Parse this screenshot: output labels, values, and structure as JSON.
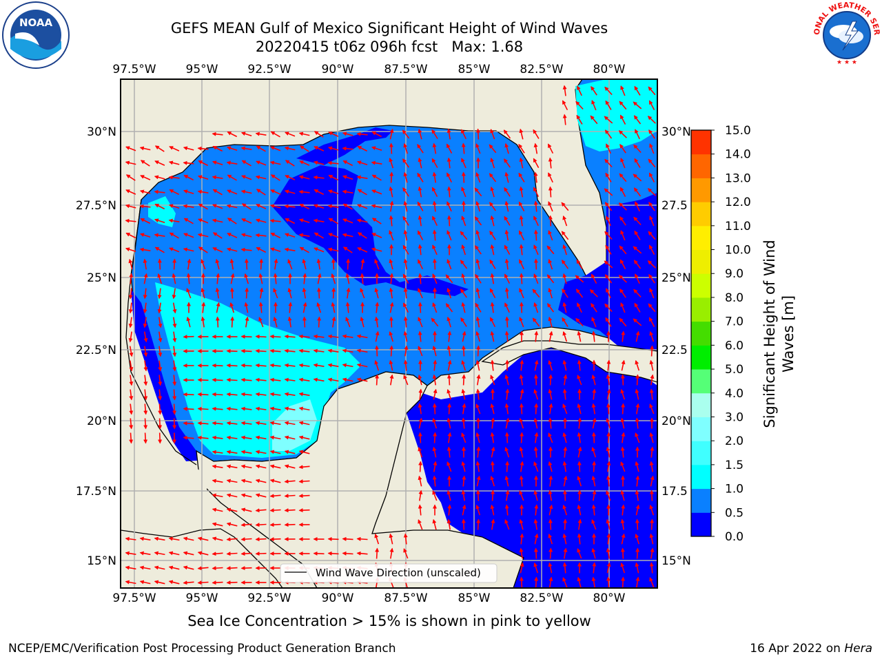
{
  "header": {
    "title_line1": "GEFS MEAN Gulf of Mexico Significant Height of Wind Waves",
    "title_line2": "20220415 t06z 096h fcst   Max: 1.68"
  },
  "logos": {
    "left": {
      "icon": "noaa-logo",
      "text": "NOAA"
    },
    "right": {
      "icon": "national-weather-service-logo",
      "text": "NATIONAL WEATHER SERVICE"
    }
  },
  "map": {
    "lon_ticks": [
      "97.5°W",
      "95°W",
      "92.5°W",
      "90°W",
      "87.5°W",
      "85°W",
      "82.5°W",
      "80°W"
    ],
    "lat_ticks_left": [
      "30°N",
      "27.5°N",
      "25°N",
      "22.5°N",
      "20°N",
      "17.5°N",
      "15°N"
    ],
    "lat_ticks_right": [
      "30°N",
      "27.5",
      "25°N",
      "22.5",
      "20°N",
      "17.5",
      "15°N"
    ],
    "lon_range": [
      -98,
      -78.25
    ],
    "lat_range": [
      14,
      31.5
    ],
    "land_color": "#eeecdc",
    "arrow_color": "#ff0000",
    "legend_label": "Wind Wave Direction (unscaled)"
  },
  "colorbar": {
    "title_line1": "Significant Height of Wind",
    "title_line2": "Waves [m]",
    "tick_labels": [
      "0.0",
      "0.5",
      "1.0",
      "1.5",
      "2.0",
      "3.0",
      "4.0",
      "5.0",
      "6.0",
      "7.0",
      "8.0",
      "9.0",
      "10.0",
      "11.0",
      "12.0",
      "13.0",
      "14.0",
      "15.0"
    ],
    "colors": [
      "#0000ff",
      "#0a80ff",
      "#00ffff",
      "#40ffff",
      "#7fffff",
      "#aaffee",
      "#55ff77",
      "#00ee00",
      "#44dd00",
      "#99ee00",
      "#ccff00",
      "#eeee00",
      "#ffee00",
      "#ffcc00",
      "#ff9900",
      "#ff6600",
      "#ff3300",
      "#ff0000"
    ]
  },
  "footer": {
    "sea_ice_note": "Sea Ice Concentration > 15% is shown in pink to yellow",
    "branch": "NCEP/EMC/Verification Post Processing Product Generation Branch",
    "date": "16 Apr 2022 on",
    "host": "Hera"
  }
}
